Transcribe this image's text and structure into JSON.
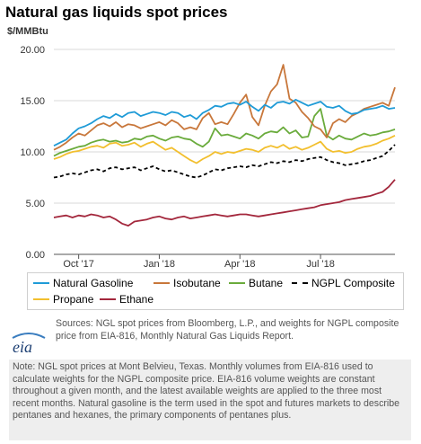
{
  "title": "Natural gas liquids spot prices",
  "unit": "$/MMBtu",
  "legend": [
    {
      "label": "Natural Gasoline",
      "color": "#1f9bd7",
      "style": "solid"
    },
    {
      "label": "Isobutane",
      "color": "#c8773b",
      "style": "solid"
    },
    {
      "label": "Butane",
      "color": "#6aab3c",
      "style": "solid"
    },
    {
      "label": "NGPL Composite",
      "color": "#000000",
      "style": "dashed"
    },
    {
      "label": "Propane",
      "color": "#f2bf2e",
      "style": "solid"
    },
    {
      "label": "Ethane",
      "color": "#a3273c",
      "style": "solid"
    }
  ],
  "sources": "Sources: NGL spot prices from Bloomberg, L.P., and weights for NGPL composite price from EIA-816, Monthly Natural Gas Liquids Report.",
  "note": "Note: NGL spot prices at Mont Belvieu, Texas. Monthly volumes from EIA-816 used to calculate weights for the NGPL composite price. EIA-816 volume weights are constant throughout a given month, and the latest available weights are applied to the three most recent months. Natural gasoline is the term used in the spot and futures markets to describe pentanes and hexanes, the primary components of pentanes plus.",
  "logo_text": "eia",
  "chart_data": {
    "type": "line",
    "ylim": [
      0,
      20
    ],
    "yticks": [
      "0.00",
      "5.00",
      "10.00",
      "15.00",
      "20.00"
    ],
    "xticks": [
      {
        "label": "Oct '17",
        "t": 4
      },
      {
        "label": "Jan '18",
        "t": 17
      },
      {
        "label": "Apr '18",
        "t": 30
      },
      {
        "label": "Jul '18",
        "t": 43
      }
    ],
    "xlim": [
      0,
      55
    ],
    "series": [
      {
        "name": "Natural Gasoline",
        "color": "#1f9bd7",
        "dashed": false,
        "values": [
          10.6,
          10.9,
          11.2,
          11.8,
          12.3,
          12.5,
          12.8,
          13.2,
          13.5,
          13.3,
          13.7,
          13.4,
          13.8,
          13.9,
          13.5,
          13.7,
          13.9,
          13.8,
          13.6,
          13.9,
          13.8,
          13.4,
          13.6,
          13.2,
          13.8,
          14.1,
          14.5,
          14.4,
          14.7,
          14.8,
          14.6,
          14.9,
          14.4,
          14.0,
          14.6,
          14.3,
          14.8,
          14.9,
          14.7,
          15.1,
          14.8,
          14.5,
          14.7,
          14.9,
          14.4,
          14.3,
          14.5,
          14.0,
          13.7,
          13.8,
          14.1,
          14.2,
          14.3,
          14.5,
          14.2,
          14.3
        ]
      },
      {
        "name": "Isobutane",
        "color": "#c8773b",
        "dashed": false,
        "values": [
          10.2,
          10.5,
          10.9,
          11.4,
          11.8,
          11.6,
          12.1,
          12.6,
          12.8,
          12.5,
          12.9,
          12.4,
          12.7,
          12.6,
          12.3,
          12.5,
          12.7,
          12.9,
          12.6,
          13.1,
          12.8,
          12.2,
          12.4,
          12.2,
          13.3,
          13.8,
          12.7,
          12.9,
          12.7,
          13.7,
          14.8,
          15.6,
          13.4,
          12.6,
          14.5,
          15.9,
          16.6,
          18.5,
          15.2,
          14.8,
          13.9,
          13.3,
          12.5,
          12.2,
          11.4,
          12.8,
          13.2,
          12.9,
          13.5,
          13.8,
          14.2,
          14.4,
          14.6,
          14.8,
          14.5,
          16.3
        ]
      },
      {
        "name": "Butane",
        "color": "#6aab3c",
        "dashed": false,
        "values": [
          9.6,
          9.9,
          10.1,
          10.3,
          10.5,
          10.6,
          10.9,
          11.1,
          11.2,
          11.0,
          11.1,
          10.9,
          11.0,
          11.3,
          11.2,
          11.5,
          11.6,
          11.3,
          11.1,
          11.4,
          11.5,
          11.3,
          11.2,
          10.8,
          10.5,
          11.0,
          12.3,
          11.6,
          11.7,
          11.5,
          11.3,
          11.8,
          11.6,
          11.3,
          11.8,
          12.0,
          11.9,
          12.4,
          11.8,
          12.1,
          11.4,
          11.5,
          13.5,
          14.2,
          11.6,
          11.2,
          11.6,
          11.3,
          11.2,
          11.5,
          11.8,
          11.6,
          11.7,
          11.9,
          12.0,
          12.2
        ]
      },
      {
        "name": "NGPL Composite",
        "color": "#000000",
        "dashed": true,
        "values": [
          7.5,
          7.6,
          7.8,
          7.9,
          7.8,
          8.0,
          8.2,
          8.3,
          8.1,
          8.4,
          8.5,
          8.3,
          8.4,
          8.5,
          8.2,
          8.4,
          8.6,
          8.3,
          8.1,
          8.2,
          8.0,
          7.8,
          7.6,
          7.5,
          7.7,
          8.0,
          8.3,
          8.2,
          8.4,
          8.5,
          8.6,
          8.5,
          8.7,
          8.6,
          8.8,
          9.0,
          8.9,
          9.1,
          9.0,
          9.2,
          9.1,
          9.3,
          9.4,
          9.5,
          9.2,
          9.0,
          8.9,
          8.7,
          8.8,
          8.9,
          9.1,
          9.2,
          9.4,
          9.6,
          10.1,
          10.7
        ]
      },
      {
        "name": "Propane",
        "color": "#f2bf2e",
        "dashed": false,
        "values": [
          9.3,
          9.5,
          9.8,
          10.0,
          10.1,
          10.3,
          10.5,
          10.6,
          10.4,
          10.8,
          10.9,
          10.6,
          10.7,
          10.9,
          10.5,
          10.8,
          11.0,
          10.6,
          10.2,
          10.4,
          10.0,
          9.6,
          9.2,
          8.9,
          9.3,
          9.6,
          10.0,
          9.8,
          10.0,
          9.9,
          10.1,
          10.3,
          10.2,
          10.0,
          10.4,
          10.6,
          10.4,
          10.7,
          10.3,
          10.5,
          10.2,
          10.4,
          10.7,
          11.0,
          10.3,
          10.0,
          10.1,
          9.9,
          10.0,
          10.3,
          10.5,
          10.6,
          10.8,
          11.1,
          11.3,
          11.6
        ]
      },
      {
        "name": "Ethane",
        "color": "#a3273c",
        "dashed": false,
        "values": [
          3.6,
          3.7,
          3.8,
          3.6,
          3.8,
          3.7,
          3.9,
          3.8,
          3.6,
          3.7,
          3.4,
          3.0,
          2.8,
          3.2,
          3.3,
          3.4,
          3.6,
          3.7,
          3.5,
          3.4,
          3.6,
          3.7,
          3.5,
          3.6,
          3.7,
          3.8,
          3.9,
          3.8,
          3.7,
          3.8,
          3.9,
          3.9,
          3.8,
          3.7,
          3.8,
          3.9,
          4.0,
          4.1,
          4.2,
          4.3,
          4.4,
          4.5,
          4.6,
          4.8,
          4.9,
          5.0,
          5.1,
          5.3,
          5.4,
          5.5,
          5.6,
          5.7,
          5.9,
          6.1,
          6.6,
          7.3
        ]
      }
    ]
  }
}
